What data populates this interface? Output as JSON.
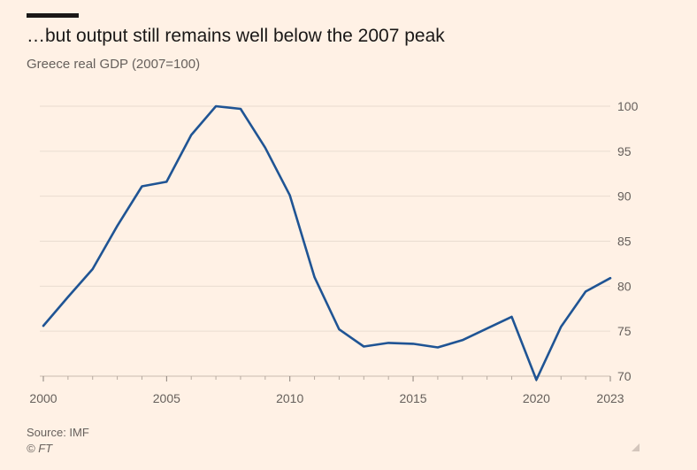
{
  "chart_data": {
    "type": "line",
    "title": "…but output still remains well below the 2007 peak",
    "subtitle": "Greece real GDP (2007=100)",
    "xlabel": "",
    "ylabel": "",
    "x": [
      2000,
      2001,
      2002,
      2003,
      2004,
      2005,
      2006,
      2007,
      2008,
      2009,
      2010,
      2011,
      2012,
      2013,
      2014,
      2015,
      2016,
      2017,
      2018,
      2019,
      2020,
      2021,
      2022,
      2023
    ],
    "series": [
      {
        "name": "Greece real GDP",
        "color": "#1f5494",
        "values": [
          75.6,
          78.8,
          81.9,
          86.7,
          91.1,
          91.6,
          96.8,
          100.0,
          99.7,
          95.4,
          90.1,
          81.0,
          75.2,
          73.3,
          73.7,
          73.6,
          73.2,
          74.0,
          75.3,
          76.6,
          69.6,
          75.5,
          79.4,
          80.9
        ]
      }
    ],
    "xlim": [
      2000,
      2023
    ],
    "ylim": [
      70,
      100
    ],
    "x_ticks": [
      2000,
      2005,
      2010,
      2015,
      2020,
      2023
    ],
    "y_ticks": [
      70,
      75,
      80,
      85,
      90,
      95,
      100
    ],
    "y_axis_side": "right",
    "grid": true
  },
  "footer": {
    "source": "Source: IMF",
    "credit": "© FT"
  }
}
